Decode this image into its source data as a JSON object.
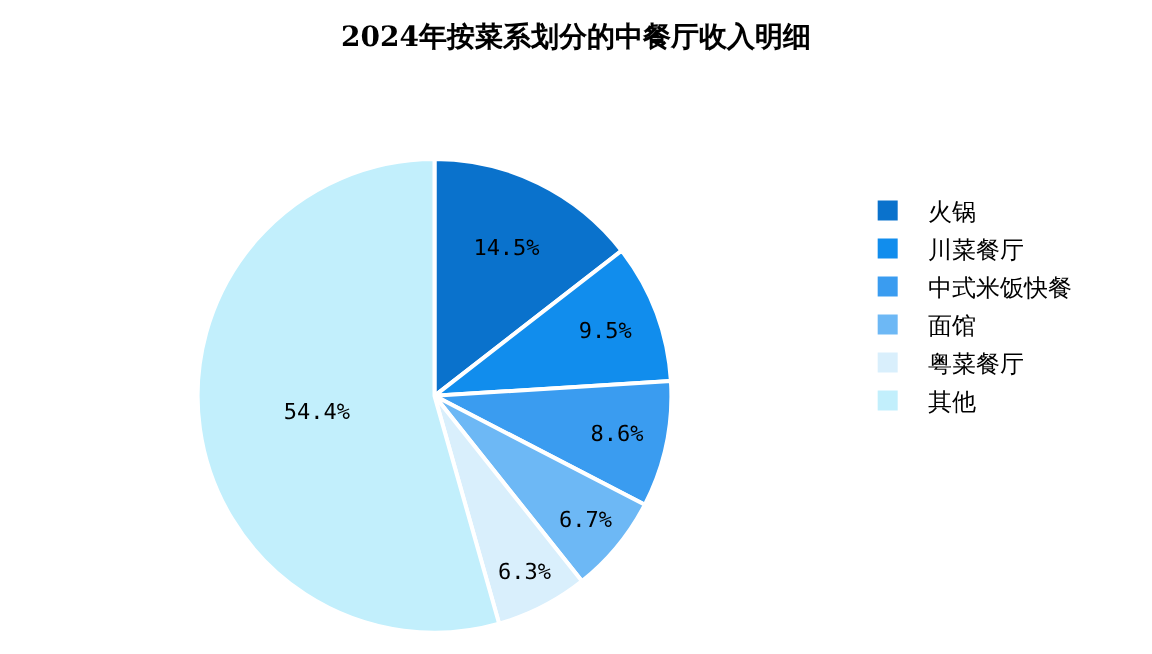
{
  "chart_data": {
    "type": "pie",
    "title": "2024年按菜系划分的中餐厅收入明细",
    "categories": [
      "火锅",
      "川菜餐厅",
      "中式米饭快餐",
      "面馆",
      "粤菜餐厅",
      "其他"
    ],
    "values": [
      14.5,
      9.5,
      8.6,
      6.7,
      6.3,
      54.4
    ],
    "value_labels": [
      "14.5%",
      "9.5%",
      "8.6%",
      "6.7%",
      "6.3%",
      "54.4%"
    ],
    "colors": [
      "#0a72cc",
      "#118ded",
      "#3a9cf0",
      "#6db8f5",
      "#d9effc",
      "#c2effc"
    ],
    "legend": "right"
  }
}
